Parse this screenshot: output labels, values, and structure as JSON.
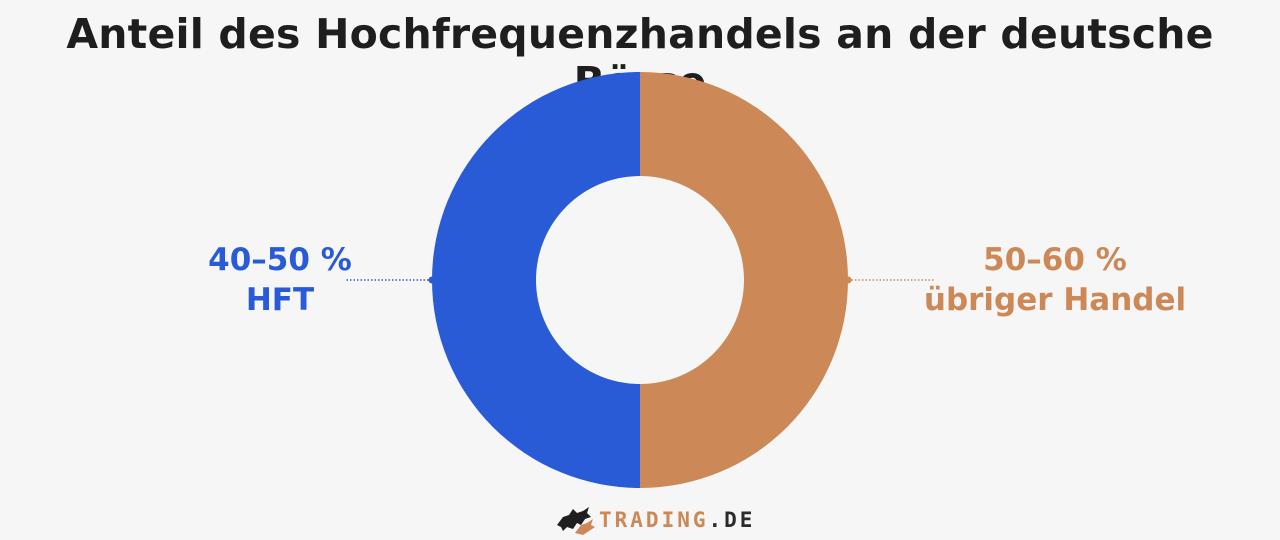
{
  "chart_data": {
    "type": "pie",
    "title": "Anteil des Hochfrequenzhandels an der deutsche Börse",
    "slices": [
      {
        "label": "HFT",
        "value_text": "40–50 %",
        "value": 50,
        "color": "#2a5bd7"
      },
      {
        "label": "übriger Handel",
        "value_text": "50–60 %",
        "value": 50,
        "color": "#cc8856"
      }
    ],
    "donut": true
  },
  "footer": {
    "brand": "TRADING",
    "tld": ".DE",
    "logo_icon": "bull-bear-logo-icon"
  }
}
